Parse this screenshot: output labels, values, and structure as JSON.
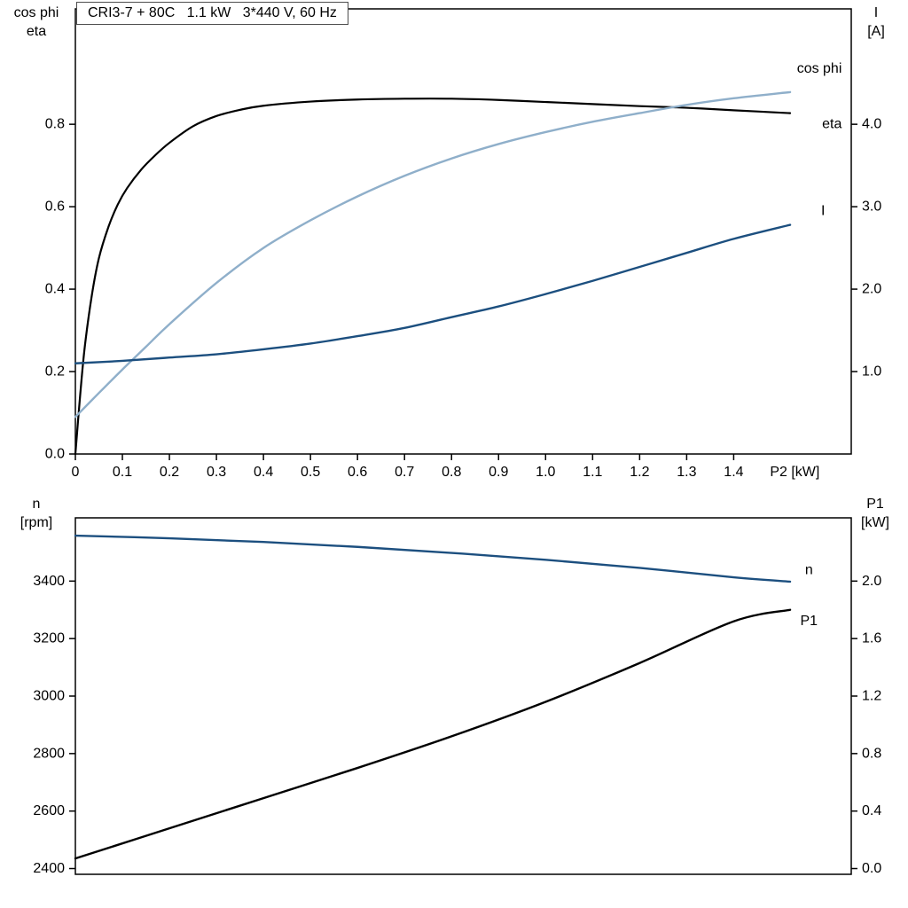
{
  "title": "CRI3-7 + 80C   1.1 kW   3*440 V, 60 Hz",
  "colors": {
    "black": "#000000",
    "dark_blue": "#1c4f7f",
    "light_blue": "#8fafca",
    "frame": "#000000"
  },
  "chart_data": [
    {
      "type": "line",
      "id": "top",
      "title_left": [
        "cos phi",
        "eta"
      ],
      "title_right": [
        "I",
        "[A]"
      ],
      "xlim": [
        0,
        1.65
      ],
      "ylim_left": [
        0,
        1.08
      ],
      "ylim_right": [
        0,
        5.4
      ],
      "x_axis_label": {
        "text": "P2 [kW]",
        "x": 1.53
      },
      "x_ticks": {
        "values": [
          0,
          0.1,
          0.2,
          0.3,
          0.4,
          0.5,
          0.6,
          0.7,
          0.8,
          0.9,
          1.0,
          1.1,
          1.2,
          1.3,
          1.4
        ],
        "labels": [
          "0",
          "0.1",
          "0.2",
          "0.3",
          "0.4",
          "0.5",
          "0.6",
          "0.7",
          "0.8",
          "0.9",
          "1.0",
          "1.1",
          "1.2",
          "1.3",
          "1.4"
        ]
      },
      "left_ticks": {
        "values": [
          0,
          0.2,
          0.4,
          0.6,
          0.8
        ],
        "labels": [
          "0.0",
          "0.2",
          "0.4",
          "0.6",
          "0.8"
        ]
      },
      "right_ticks": {
        "values": [
          1,
          2,
          3,
          4
        ],
        "labels": [
          "1.0",
          "2.0",
          "3.0",
          "4.0"
        ]
      },
      "series": [
        {
          "name": "eta",
          "axis": "left",
          "color": "#000000",
          "width": 2.2,
          "x": [
            0,
            0.01,
            0.02,
            0.035,
            0.05,
            0.07,
            0.09,
            0.11,
            0.14,
            0.17,
            0.2,
            0.25,
            0.3,
            0.35,
            0.4,
            0.5,
            0.6,
            0.7,
            0.8,
            0.9,
            1.0,
            1.1,
            1.2,
            1.3,
            1.4,
            1.52
          ],
          "y": [
            0,
            0.14,
            0.26,
            0.385,
            0.475,
            0.55,
            0.605,
            0.645,
            0.69,
            0.725,
            0.755,
            0.795,
            0.82,
            0.835,
            0.845,
            0.855,
            0.86,
            0.862,
            0.862,
            0.859,
            0.854,
            0.849,
            0.844,
            0.84,
            0.834,
            0.827
          ],
          "label": {
            "text": "eta",
            "x": 1.63,
            "y": 0.8,
            "anchor": "end",
            "color": "#000000"
          }
        },
        {
          "name": "cos phi",
          "axis": "left",
          "color": "#8fafca",
          "width": 2.4,
          "x": [
            0,
            0.05,
            0.1,
            0.15,
            0.2,
            0.3,
            0.4,
            0.5,
            0.6,
            0.7,
            0.8,
            0.9,
            1.0,
            1.1,
            1.2,
            1.3,
            1.4,
            1.52
          ],
          "y": [
            0.09,
            0.148,
            0.205,
            0.26,
            0.315,
            0.415,
            0.5,
            0.567,
            0.625,
            0.675,
            0.717,
            0.752,
            0.781,
            0.806,
            0.827,
            0.847,
            0.863,
            0.878
          ],
          "label": {
            "text": "cos phi",
            "x": 1.63,
            "y": 0.935,
            "anchor": "end",
            "color": "#8fafca"
          }
        },
        {
          "name": "I",
          "axis": "right",
          "color": "#1c4f7f",
          "width": 2.4,
          "x": [
            0,
            0.1,
            0.2,
            0.3,
            0.4,
            0.5,
            0.6,
            0.7,
            0.8,
            0.9,
            1.0,
            1.1,
            1.2,
            1.3,
            1.4,
            1.52
          ],
          "y": [
            1.1,
            1.13,
            1.17,
            1.21,
            1.27,
            1.34,
            1.43,
            1.53,
            1.66,
            1.79,
            1.94,
            2.1,
            2.27,
            2.44,
            2.61,
            2.78
          ],
          "label": {
            "text": "I",
            "x": 1.59,
            "y": 2.95,
            "anchor": "middle",
            "color": "#1c4f7f"
          }
        }
      ]
    },
    {
      "type": "line",
      "id": "bottom",
      "title_left": [
        "n",
        "[rpm]"
      ],
      "title_right": [
        "P1",
        "[kW]"
      ],
      "xlim": [
        0,
        1.65
      ],
      "ylim_left": [
        2380,
        3620
      ],
      "ylim_right": [
        -0.04,
        2.44
      ],
      "x_axis_label": null,
      "x_ticks": {
        "values": [],
        "labels": []
      },
      "left_ticks": {
        "values": [
          2400,
          2600,
          2800,
          3000,
          3200,
          3400
        ],
        "labels": [
          "2400",
          "2600",
          "2800",
          "3000",
          "3200",
          "3400"
        ]
      },
      "right_ticks": {
        "values": [
          0,
          0.4,
          0.8,
          1.2,
          1.6,
          2.0
        ],
        "labels": [
          "0.0",
          "0.4",
          "0.8",
          "1.2",
          "1.6",
          "2.0"
        ]
      },
      "series": [
        {
          "name": "n",
          "axis": "left",
          "color": "#1c4f7f",
          "width": 2.4,
          "x": [
            0,
            0.2,
            0.4,
            0.6,
            0.8,
            1.0,
            1.2,
            1.4,
            1.52
          ],
          "y": [
            3558,
            3549,
            3536,
            3519,
            3498,
            3474,
            3446,
            3413,
            3398
          ],
          "label": {
            "text": "n",
            "x": 1.56,
            "y": 3438,
            "anchor": "middle",
            "color": "#1c4f7f"
          }
        },
        {
          "name": "P1",
          "axis": "right",
          "color": "#000000",
          "width": 2.4,
          "x": [
            0,
            0.2,
            0.4,
            0.6,
            0.8,
            1.0,
            1.2,
            1.4,
            1.52
          ],
          "y": [
            0.07,
            0.28,
            0.49,
            0.7,
            0.92,
            1.16,
            1.43,
            1.72,
            1.8
          ],
          "label": {
            "text": "P1",
            "x": 1.56,
            "y": 1.72,
            "anchor": "middle",
            "color": "#000000"
          }
        }
      ]
    }
  ]
}
